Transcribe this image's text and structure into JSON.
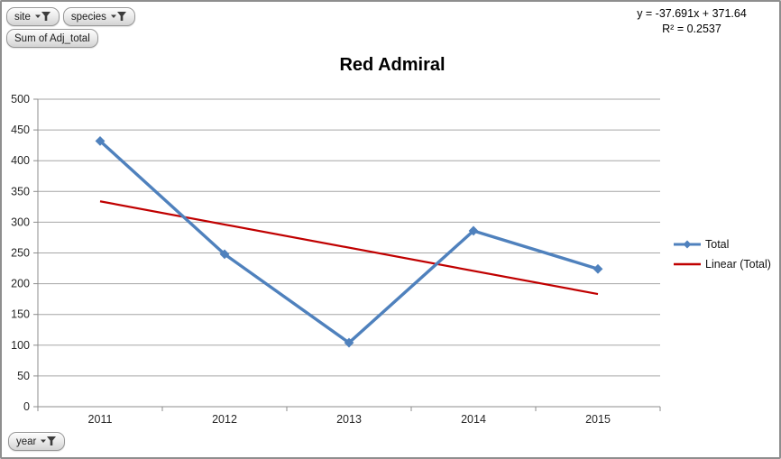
{
  "buttons": {
    "site": {
      "label": "site"
    },
    "species": {
      "label": "species"
    },
    "value_field": {
      "label": "Sum of Adj_total"
    },
    "year": {
      "label": "year"
    }
  },
  "equation": {
    "line1": "y = -37.691x + 371.64",
    "line2": "R² = 0.2537"
  },
  "chart_data": {
    "type": "line",
    "title": "Red Admiral",
    "categories": [
      "2011",
      "2012",
      "2013",
      "2014",
      "2015"
    ],
    "series": [
      {
        "name": "Total",
        "values": [
          432,
          248,
          104,
          286,
          224
        ],
        "color": "#4F81BD",
        "marker": "diamond"
      }
    ],
    "trendline": {
      "name": "Linear (Total)",
      "slope": -37.691,
      "intercept": 371.64,
      "r_squared": 0.2537,
      "color": "#C00000"
    },
    "xlabel": "",
    "ylabel": "",
    "ylim": [
      0,
      500
    ],
    "ytick_step": 50,
    "grid": "horizontal",
    "legend_position": "right",
    "legend": [
      "Total",
      "Linear (Total)"
    ]
  },
  "colors": {
    "gridline": "#A6A6A6",
    "axis": "#8C8C8C",
    "tick_label": "#262626"
  }
}
